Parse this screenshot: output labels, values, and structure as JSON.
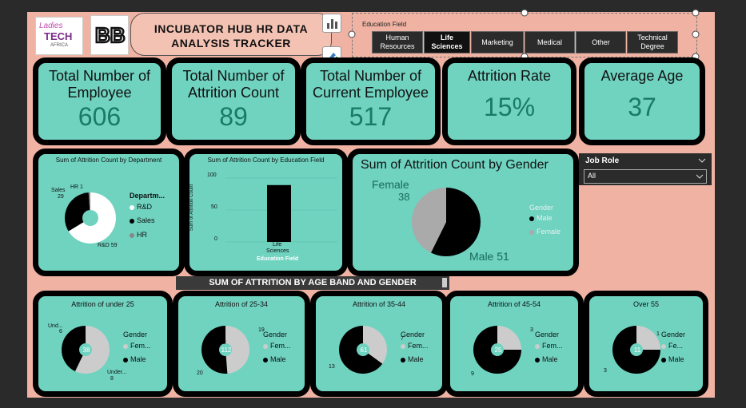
{
  "header": {
    "logo_text_line1": "Ladies",
    "logo_text_line2": "TECH",
    "logo_text_line3": "AFRICA",
    "title_line1": "INCUBATOR HUB HR DATA",
    "title_line2": "ANALYSIS  TRACKER"
  },
  "education_slicer": {
    "label": "Education Field",
    "options": [
      "Human Resources",
      "Life Sciences",
      "Marketing",
      "Medical",
      "Other",
      "Technical Degree"
    ],
    "selected": "Life Sciences"
  },
  "kpis": [
    {
      "label": "Total Number of Employee",
      "value": "606"
    },
    {
      "label": "Total Number of Attrition Count",
      "value": "89"
    },
    {
      "label": "Total Number of Current Employee",
      "value": "517"
    },
    {
      "label": "Attrition Rate",
      "value": "15%"
    },
    {
      "label": "Average Age",
      "value": "37"
    }
  ],
  "dept_chart": {
    "title": "Sum of Attrition Count by Department",
    "legend_title": "Departm...",
    "legend": [
      "R&D",
      "Sales",
      "HR"
    ],
    "labels": {
      "hr": "HR 1",
      "sales": "Sales",
      "sales_val": "29",
      "rd": "R&D 59"
    },
    "chart_data": {
      "type": "pie",
      "categories": [
        "R&D",
        "Sales",
        "HR"
      ],
      "values": [
        59,
        29,
        1
      ],
      "colors": [
        "#ffffff",
        "#000000",
        "#888888"
      ]
    }
  },
  "edu_chart": {
    "title": "Sum of Attrition Count by Education Field",
    "ylabel": "Sum of Attrition Count",
    "xlabel": "Education Field",
    "ticks": [
      "100",
      "50",
      "0"
    ],
    "category_line1": "Life",
    "category_line2": "Sciences",
    "chart_data": {
      "type": "bar",
      "categories": [
        "Life Sciences"
      ],
      "values": [
        89
      ],
      "ylim": [
        0,
        100
      ]
    }
  },
  "gender_chart": {
    "title": "Sum of Attrition Count by Gender",
    "female_label": "Female",
    "female_value": "38",
    "male_label": "Male 51",
    "legend_title": "Gender",
    "legend": [
      "Male",
      "Female"
    ],
    "chart_data": {
      "type": "pie",
      "categories": [
        "Male",
        "Female"
      ],
      "values": [
        51,
        38
      ],
      "colors": [
        "#000000",
        "#aaaaaa"
      ]
    }
  },
  "job_role": {
    "label": "Job Role",
    "value": "All"
  },
  "age_band_header": "SUM OF ATTRITION BY AGE BAND AND GENDER",
  "age_cards": [
    {
      "title": "Attrition of under 25",
      "center": "38",
      "legend_title": "Gender",
      "legend": [
        "Fem...",
        "Male"
      ],
      "labels": [
        "Und...",
        "6",
        "Under...",
        "8"
      ],
      "chart_data": {
        "type": "pie",
        "categories": [
          "Female",
          "Male"
        ],
        "values": [
          8,
          6
        ]
      }
    },
    {
      "title": "Attrition of 25-34",
      "center": "112",
      "legend_title": "Gender",
      "legend": [
        "Fem...",
        "Male"
      ],
      "labels": [
        "19",
        "20",
        "2"
      ],
      "chart_data": {
        "type": "pie",
        "categories": [
          "Female",
          "Male"
        ],
        "values": [
          19,
          20
        ]
      }
    },
    {
      "title": "Attrition of 35-44",
      "center": "61",
      "legend_title": "Gender",
      "legend": [
        "Fem...",
        "Male"
      ],
      "labels": [
        "7",
        "13"
      ],
      "chart_data": {
        "type": "pie",
        "categories": [
          "Female",
          "Male"
        ],
        "values": [
          7,
          13
        ]
      }
    },
    {
      "title": "Attrition of 45-54",
      "center": "25",
      "legend_title": "Gender",
      "legend": [
        "Fem...",
        "Male"
      ],
      "labels": [
        "3",
        "9"
      ],
      "chart_data": {
        "type": "pie",
        "categories": [
          "Female",
          "Male"
        ],
        "values": [
          3,
          9
        ]
      }
    },
    {
      "title": "Over 55",
      "center": "11",
      "legend_title": "Gender",
      "legend": [
        "Fe...",
        "Male"
      ],
      "labels": [
        "1",
        "3"
      ],
      "chart_data": {
        "type": "pie",
        "categories": [
          "Female",
          "Male"
        ],
        "values": [
          1,
          3
        ]
      }
    }
  ]
}
